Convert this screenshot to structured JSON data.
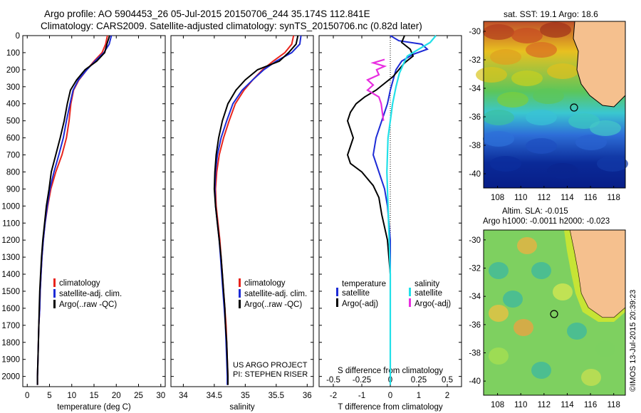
{
  "header": {
    "line1": "Argo profile: AO 5904453_26 05-Jul-2015 20150706_244 35.174S 112.841E",
    "line2": "Climatology: CARS2009. Satellite-adjusted climatology: synTS_20150706.nc (0.82d later)"
  },
  "credits": {
    "project": "US ARGO PROJECT",
    "pi": "PI: STEPHEN RISER",
    "timestamp": "©IMOS 13-Jul-2015 20:39:23"
  },
  "colors": {
    "climatology": "#e8241c",
    "satellite": "#1d2bd6",
    "argo": "#000000",
    "satellite_salinity": "#22e0e8",
    "argo_salinity": "#e82ee0",
    "land": "#f5c08e",
    "coast": "#d8e82a"
  },
  "chart_data": [
    {
      "type": "line",
      "panel": "temperature",
      "xlabel": "temperature (deg C)",
      "ylabel": "",
      "xlim": [
        -1,
        31
      ],
      "ylim": [
        2060,
        0
      ],
      "xticks": [
        "0",
        "5",
        "10",
        "15",
        "20",
        "25",
        "30"
      ],
      "yticks": [
        "0",
        "100",
        "200",
        "300",
        "400",
        "500",
        "600",
        "700",
        "800",
        "900",
        "1000",
        "1100",
        "1200",
        "1300",
        "1400",
        "1500",
        "1600",
        "1700",
        "1800",
        "1900",
        "2000"
      ],
      "legend": [
        "climatology",
        "satellite-adj. clim.",
        "Argo(..raw -QC)"
      ],
      "series": [
        {
          "name": "climatology",
          "color": "climatology",
          "points": [
            [
              18.0,
              0
            ],
            [
              17.6,
              50
            ],
            [
              16.8,
              100
            ],
            [
              15.0,
              150
            ],
            [
              13.4,
              200
            ],
            [
              11.6,
              260
            ],
            [
              10.4,
              320
            ],
            [
              9.8,
              400
            ],
            [
              9.4,
              500
            ],
            [
              8.8,
              600
            ],
            [
              7.8,
              700
            ],
            [
              6.4,
              800
            ],
            [
              5.3,
              900
            ],
            [
              4.6,
              1000
            ],
            [
              4.0,
              1100
            ],
            [
              3.6,
              1200
            ],
            [
              3.3,
              1300
            ],
            [
              3.1,
              1400
            ],
            [
              2.9,
              1500
            ],
            [
              2.8,
              1600
            ],
            [
              2.6,
              1700
            ],
            [
              2.5,
              1800
            ],
            [
              2.4,
              1900
            ],
            [
              2.3,
              2000
            ],
            [
              2.3,
              2050
            ]
          ]
        },
        {
          "name": "satellite-adj. clim.",
          "color": "satellite",
          "points": [
            [
              18.9,
              0
            ],
            [
              18.4,
              50
            ],
            [
              17.2,
              100
            ],
            [
              15.2,
              150
            ],
            [
              13.4,
              200
            ],
            [
              11.5,
              260
            ],
            [
              10.3,
              320
            ],
            [
              9.6,
              400
            ],
            [
              8.8,
              500
            ],
            [
              8.1,
              600
            ],
            [
              7.1,
              700
            ],
            [
              6.0,
              800
            ],
            [
              5.1,
              900
            ],
            [
              4.5,
              1000
            ],
            [
              4.0,
              1100
            ],
            [
              3.6,
              1200
            ],
            [
              3.3,
              1300
            ],
            [
              3.1,
              1400
            ],
            [
              2.9,
              1500
            ],
            [
              2.8,
              1600
            ],
            [
              2.6,
              1700
            ],
            [
              2.5,
              1800
            ],
            [
              2.4,
              1900
            ],
            [
              2.3,
              2000
            ],
            [
              2.3,
              2050
            ]
          ]
        },
        {
          "name": "Argo(..raw -QC)",
          "color": "argo",
          "points": [
            [
              18.5,
              0
            ],
            [
              17.9,
              50
            ],
            [
              17.4,
              100
            ],
            [
              15.6,
              150
            ],
            [
              13.0,
              200
            ],
            [
              11.1,
              260
            ],
            [
              9.7,
              320
            ],
            [
              9.0,
              400
            ],
            [
              8.3,
              500
            ],
            [
              7.4,
              600
            ],
            [
              6.4,
              700
            ],
            [
              5.4,
              800
            ],
            [
              4.9,
              900
            ],
            [
              4.3,
              1000
            ],
            [
              3.9,
              1100
            ],
            [
              3.5,
              1200
            ],
            [
              3.2,
              1300
            ],
            [
              3.0,
              1400
            ],
            [
              2.8,
              1500
            ],
            [
              2.7,
              1600
            ],
            [
              2.6,
              1700
            ],
            [
              2.5,
              1800
            ],
            [
              2.4,
              1900
            ],
            [
              2.3,
              2000
            ],
            [
              2.3,
              2050
            ]
          ]
        }
      ]
    },
    {
      "type": "line",
      "panel": "salinity",
      "xlabel": "salinity",
      "ylabel": "",
      "xlim": [
        33.8,
        36.1
      ],
      "ylim": [
        2060,
        0
      ],
      "xticks": [
        "34",
        "34.5",
        "35",
        "35.5",
        "36"
      ],
      "legend": [
        "climatology",
        "satellite-adj. clim.",
        "Argo(..raw -QC)"
      ],
      "series": [
        {
          "name": "climatology",
          "color": "climatology",
          "points": [
            [
              35.78,
              0
            ],
            [
              35.75,
              50
            ],
            [
              35.64,
              100
            ],
            [
              35.45,
              150
            ],
            [
              35.28,
              200
            ],
            [
              35.12,
              260
            ],
            [
              34.98,
              320
            ],
            [
              34.84,
              400
            ],
            [
              34.74,
              500
            ],
            [
              34.65,
              600
            ],
            [
              34.58,
              700
            ],
            [
              34.54,
              800
            ],
            [
              34.52,
              900
            ],
            [
              34.53,
              1000
            ],
            [
              34.56,
              1100
            ],
            [
              34.59,
              1200
            ],
            [
              34.61,
              1300
            ],
            [
              34.63,
              1400
            ],
            [
              34.65,
              1500
            ],
            [
              34.67,
              1600
            ],
            [
              34.69,
              1700
            ],
            [
              34.7,
              1800
            ],
            [
              34.71,
              1900
            ],
            [
              34.72,
              2000
            ],
            [
              34.72,
              2050
            ]
          ]
        },
        {
          "name": "satellite-adj. clim.",
          "color": "satellite",
          "points": [
            [
              35.9,
              0
            ],
            [
              35.88,
              50
            ],
            [
              35.75,
              100
            ],
            [
              35.5,
              150
            ],
            [
              35.3,
              200
            ],
            [
              35.12,
              260
            ],
            [
              34.95,
              320
            ],
            [
              34.8,
              400
            ],
            [
              34.7,
              500
            ],
            [
              34.61,
              600
            ],
            [
              34.55,
              700
            ],
            [
              34.52,
              800
            ],
            [
              34.51,
              900
            ],
            [
              34.52,
              1000
            ],
            [
              34.55,
              1100
            ],
            [
              34.58,
              1200
            ],
            [
              34.6,
              1300
            ],
            [
              34.62,
              1400
            ],
            [
              34.64,
              1500
            ],
            [
              34.66,
              1600
            ],
            [
              34.68,
              1700
            ],
            [
              34.69,
              1800
            ],
            [
              34.7,
              1900
            ],
            [
              34.71,
              2000
            ],
            [
              34.71,
              2050
            ]
          ]
        },
        {
          "name": "Argo(..raw -QC)",
          "color": "argo",
          "points": [
            [
              35.85,
              0
            ],
            [
              35.82,
              50
            ],
            [
              35.7,
              100
            ],
            [
              35.55,
              150
            ],
            [
              35.2,
              200
            ],
            [
              35.0,
              260
            ],
            [
              34.85,
              320
            ],
            [
              34.72,
              400
            ],
            [
              34.63,
              500
            ],
            [
              34.57,
              600
            ],
            [
              34.53,
              700
            ],
            [
              34.51,
              800
            ],
            [
              34.5,
              900
            ],
            [
              34.52,
              1000
            ],
            [
              34.55,
              1100
            ],
            [
              34.58,
              1200
            ],
            [
              34.61,
              1300
            ],
            [
              34.63,
              1400
            ],
            [
              34.65,
              1500
            ],
            [
              34.67,
              1600
            ],
            [
              34.68,
              1700
            ],
            [
              34.7,
              1800
            ],
            [
              34.71,
              1900
            ],
            [
              34.72,
              2000
            ],
            [
              34.72,
              2050
            ]
          ]
        }
      ]
    },
    {
      "type": "line",
      "panel": "difference",
      "xlabel": "T difference from climatology",
      "xlabel2": "S difference from climatology",
      "xlim": [
        -2.5,
        2.5
      ],
      "ylim": [
        2060,
        0
      ],
      "xticks": [
        "-2",
        "-1",
        "0",
        "1",
        "2"
      ],
      "xticks_s": [
        "-0.5",
        "-0.25",
        "0",
        "0.25",
        "0.5"
      ],
      "legend_temperature": [
        "temperature",
        "satellite",
        "Argo(-adj)"
      ],
      "legend_salinity": [
        "salinity",
        "satellite",
        "Argo(-adj)"
      ],
      "series": [
        {
          "name": "satellite",
          "quantity": "temperature",
          "color": "satellite",
          "points": [
            [
              0.0,
              0
            ],
            [
              0.3,
              30
            ],
            [
              1.1,
              50
            ],
            [
              1.3,
              80
            ],
            [
              0.8,
              110
            ],
            [
              0.4,
              150
            ],
            [
              0.2,
              200
            ],
            [
              0.1,
              260
            ],
            [
              0.0,
              320
            ],
            [
              -0.1,
              400
            ],
            [
              -0.3,
              500
            ],
            [
              -0.5,
              600
            ],
            [
              -0.6,
              700
            ],
            [
              -0.4,
              800
            ],
            [
              -0.2,
              900
            ],
            [
              -0.1,
              1000
            ],
            [
              0.0,
              1200
            ],
            [
              0.0,
              1500
            ],
            [
              0.0,
              2050
            ]
          ]
        },
        {
          "name": "Argo(-adj)",
          "quantity": "temperature",
          "color": "argo",
          "points": [
            [
              0.5,
              0
            ],
            [
              0.4,
              40
            ],
            [
              0.7,
              80
            ],
            [
              0.8,
              120
            ],
            [
              0.5,
              160
            ],
            [
              0.3,
              200
            ],
            [
              0.1,
              240
            ],
            [
              -0.2,
              280
            ],
            [
              -0.5,
              320
            ],
            [
              -0.9,
              360
            ],
            [
              -1.2,
              400
            ],
            [
              -1.4,
              450
            ],
            [
              -1.5,
              500
            ],
            [
              -1.4,
              550
            ],
            [
              -1.3,
              600
            ],
            [
              -1.5,
              700
            ],
            [
              -1.4,
              750
            ],
            [
              -1.0,
              800
            ],
            [
              -0.6,
              880
            ],
            [
              -0.4,
              950
            ],
            [
              -0.3,
              1050
            ],
            [
              -0.1,
              1200
            ],
            [
              0.0,
              1400
            ],
            [
              0.0,
              2050
            ]
          ]
        },
        {
          "name": "satellite",
          "quantity": "salinity",
          "color": "satellite_salinity",
          "points": [
            [
              0.4,
              0
            ],
            [
              0.35,
              40
            ],
            [
              0.25,
              80
            ],
            [
              0.15,
              120
            ],
            [
              0.12,
              160
            ],
            [
              0.08,
              220
            ],
            [
              0.05,
              300
            ],
            [
              0.02,
              400
            ],
            [
              0.0,
              500
            ],
            [
              -0.02,
              600
            ],
            [
              -0.03,
              800
            ],
            [
              -0.02,
              1000
            ],
            [
              -0.01,
              1200
            ],
            [
              0.0,
              1400
            ],
            [
              0.0,
              2050
            ]
          ]
        },
        {
          "name": "Argo(-adj)",
          "quantity": "salinity",
          "color": "argo_salinity",
          "points": [
            [
              -0.05,
              140
            ],
            [
              -0.15,
              160
            ],
            [
              -0.05,
              180
            ],
            [
              -0.12,
              200
            ],
            [
              -0.1,
              230
            ],
            [
              -0.2,
              260
            ],
            [
              -0.15,
              290
            ],
            [
              -0.2,
              320
            ],
            [
              -0.1,
              360
            ],
            [
              -0.08,
              400
            ],
            [
              -0.06,
              500
            ]
          ]
        }
      ]
    },
    {
      "type": "heatmap",
      "panel": "sst_map",
      "title": "sat. SST: 19.1 Argo: 18.6",
      "xticks": [
        "108",
        "110",
        "112",
        "114",
        "116",
        "118"
      ],
      "yticks": [
        "-30",
        "-32",
        "-34",
        "-36",
        "-38",
        "-40"
      ],
      "xlim": [
        106.8,
        119.0
      ],
      "ylim": [
        -41,
        -29.3
      ],
      "marker": [
        112.841,
        -35.174
      ]
    },
    {
      "type": "heatmap",
      "panel": "sla_map",
      "title": "Altim. SLA: -0.015",
      "subtitle": "Argo h1000: -0.0011 h2000: -0.023",
      "xticks": [
        "108",
        "110",
        "112",
        "114",
        "116",
        "118"
      ],
      "yticks": [
        "-30",
        "-32",
        "-34",
        "-36",
        "-38",
        "-40"
      ],
      "xlim": [
        106.8,
        119.0
      ],
      "ylim": [
        -41,
        -29.3
      ],
      "marker": [
        112.841,
        -35.174
      ]
    }
  ]
}
